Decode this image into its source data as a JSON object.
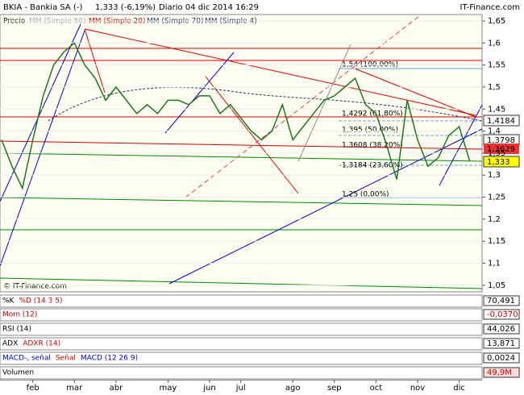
{
  "header": {
    "symbol": "BKIA - Bankia SA (-)",
    "quote": "1,333 (-6,19%)",
    "period": "Diario 04 dic 2014 16:29",
    "site": "IT-Finance.com"
  },
  "legend": [
    "Precio",
    "MM (Simple 50)",
    "MM (Simple 20)",
    "MM (Simple 70)",
    "MM (Simple 4)"
  ],
  "fibonacci": [
    "1,54 (100,00%)",
    "1,4292 (61,80%)",
    "1,395 (50,00%)",
    "1,3608 (38,20%)",
    "1,3184 (23,60%)",
    "1,25 (0,00%)"
  ],
  "price_labels": [
    "1,4184",
    "1,3798",
    "1,3629",
    "1,333"
  ],
  "copyright": "© IT-Finance.com",
  "panels": [
    {
      "labels": [
        "%K",
        "%D (14 3 5)"
      ],
      "last": "70,491"
    },
    {
      "labels": [
        "Mom (12)"
      ],
      "last": "-0,0370"
    },
    {
      "labels": [
        "RSI (14)"
      ],
      "last": "44,026"
    },
    {
      "labels": [
        "ADX",
        "ADXR (14)"
      ],
      "last": "13,871"
    },
    {
      "labels": [
        "MACD-, señal",
        "Señal",
        "MACD (12 26 9)"
      ],
      "last": "0,0024"
    },
    {
      "labels": [
        "Volumen"
      ],
      "last": "49,9M"
    }
  ],
  "chart_data": {
    "type": "line",
    "categories": [
      null,
      null,
      null,
      "feb",
      null,
      null,
      null,
      "mar",
      null,
      null,
      null,
      "abr",
      null,
      null,
      null,
      null,
      "may",
      null,
      null,
      null,
      "jun",
      null,
      null,
      "jul",
      null,
      null,
      null,
      null,
      "ago",
      null,
      null,
      null,
      "sep",
      null,
      null,
      null,
      "oct",
      null,
      null,
      null,
      "nov",
      null,
      null,
      null,
      "dic",
      null
    ],
    "series": [
      {
        "name": "Precio",
        "color": "#1a7a1a",
        "values": [
          1.38,
          1.32,
          1.27,
          1.38,
          1.48,
          1.55,
          1.58,
          1.6,
          1.55,
          1.52,
          1.47,
          1.5,
          1.47,
          1.44,
          1.46,
          1.44,
          1.47,
          1.47,
          1.46,
          1.48,
          1.48,
          1.44,
          1.46,
          1.43,
          1.4,
          1.38,
          1.4,
          1.46,
          1.38,
          1.41,
          1.44,
          1.47,
          1.48,
          1.5,
          1.52,
          1.46,
          1.44,
          1.37,
          1.29,
          1.47,
          1.38,
          1.32,
          1.34,
          1.39,
          1.41,
          1.333
        ]
      }
    ],
    "ylim": [
      1.035,
      1.683
    ],
    "yticks": [
      {
        "value": 1.05,
        "label": "1,05"
      },
      {
        "value": 1.1,
        "label": "1,1"
      },
      {
        "value": 1.15,
        "label": "1,15"
      },
      {
        "value": 1.2,
        "label": "1,2"
      },
      {
        "value": 1.25,
        "label": "1,25"
      },
      {
        "value": 1.3,
        "label": "1,3"
      },
      {
        "value": 1.35,
        "label": "1,35"
      },
      {
        "value": 1.4,
        "label": "1,4"
      },
      {
        "value": 1.45,
        "label": "1,45"
      },
      {
        "value": 1.5,
        "label": "1,5"
      },
      {
        "value": 1.55,
        "label": "1,55"
      },
      {
        "value": 1.6,
        "label": "1,6"
      },
      {
        "value": 1.65,
        "label": "1,65"
      }
    ],
    "grid": true
  }
}
